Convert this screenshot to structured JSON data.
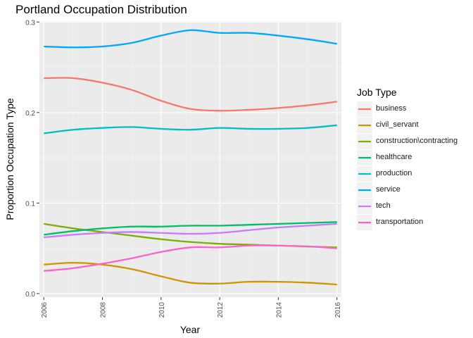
{
  "chart_data": {
    "type": "line",
    "title": "Portland Occupation Distribution",
    "xlabel": "Year",
    "ylabel": "Proportion Occupation Type",
    "xlim": [
      2005.85,
      2016.15
    ],
    "ylim": [
      -0.004,
      0.301
    ],
    "x_ticks": [
      2006,
      2008,
      2010,
      2012,
      2014,
      2016
    ],
    "x_tick_labels": [
      "2006",
      "2008",
      "2010",
      "2012",
      "2014",
      "2016"
    ],
    "y_ticks": [
      0.0,
      0.1,
      0.2,
      0.3
    ],
    "y_tick_labels": [
      "0.0",
      "0.1",
      "0.2",
      "0.3"
    ],
    "x": [
      2006,
      2007,
      2008,
      2009,
      2010,
      2011,
      2012,
      2013,
      2014,
      2015,
      2016
    ],
    "grid": true,
    "legend": {
      "title": "Job Type",
      "position": "right"
    },
    "series": [
      {
        "name": "business",
        "color": "#F8766D",
        "values": [
          0.238,
          0.238,
          0.233,
          0.225,
          0.213,
          0.204,
          0.202,
          0.203,
          0.205,
          0.208,
          0.212
        ]
      },
      {
        "name": "civil_servant",
        "color": "#CD9600",
        "values": [
          0.032,
          0.034,
          0.032,
          0.027,
          0.019,
          0.012,
          0.011,
          0.013,
          0.013,
          0.012,
          0.01
        ]
      },
      {
        "name": "construction\\contracting",
        "color": "#7CAE00",
        "values": [
          0.077,
          0.072,
          0.068,
          0.064,
          0.06,
          0.057,
          0.055,
          0.054,
          0.053,
          0.052,
          0.051
        ]
      },
      {
        "name": "healthcare",
        "color": "#00BE67",
        "values": [
          0.065,
          0.069,
          0.072,
          0.074,
          0.074,
          0.075,
          0.075,
          0.076,
          0.077,
          0.078,
          0.079
        ]
      },
      {
        "name": "production",
        "color": "#00BFC4",
        "values": [
          0.177,
          0.181,
          0.183,
          0.184,
          0.182,
          0.181,
          0.183,
          0.182,
          0.182,
          0.183,
          0.186
        ]
      },
      {
        "name": "service",
        "color": "#00A9FF",
        "values": [
          0.273,
          0.272,
          0.273,
          0.277,
          0.285,
          0.291,
          0.288,
          0.288,
          0.285,
          0.281,
          0.276
        ]
      },
      {
        "name": "tech",
        "color": "#C77CFF",
        "values": [
          0.062,
          0.065,
          0.067,
          0.068,
          0.067,
          0.066,
          0.067,
          0.07,
          0.073,
          0.075,
          0.077
        ]
      },
      {
        "name": "transportation",
        "color": "#FF61CC",
        "values": [
          0.025,
          0.028,
          0.033,
          0.039,
          0.046,
          0.051,
          0.051,
          0.053,
          0.053,
          0.052,
          0.05
        ]
      }
    ]
  }
}
